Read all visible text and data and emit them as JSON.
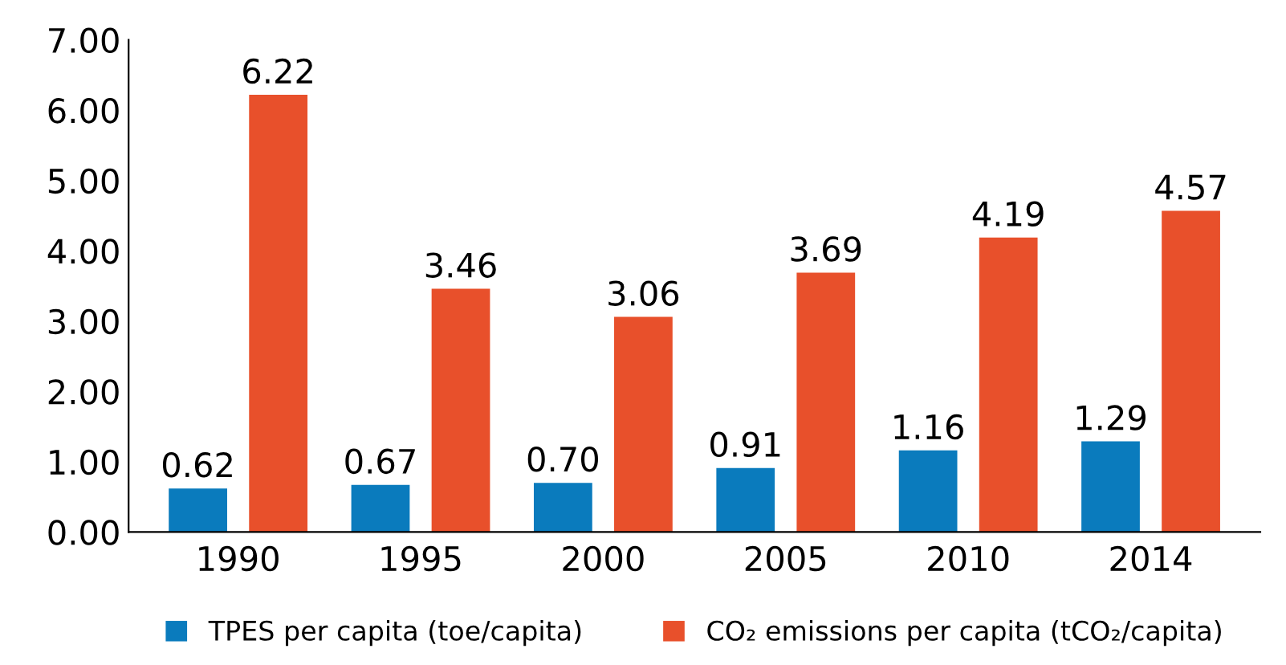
{
  "chart_data": {
    "type": "bar",
    "categories": [
      "1990",
      "1995",
      "2000",
      "2005",
      "2010",
      "2014"
    ],
    "series": [
      {
        "name": "TPES per capita (toe/capita)",
        "color": "#0a7bbd",
        "values": [
          0.62,
          0.67,
          0.7,
          0.91,
          1.16,
          1.29
        ],
        "value_labels": [
          "0.62",
          "0.67",
          "0.70",
          "0.91",
          "1.16",
          "1.29"
        ]
      },
      {
        "name": "CO₂ emissions per capita (tCO₂/capita)",
        "color": "#e8502b",
        "values": [
          6.22,
          3.46,
          3.06,
          3.69,
          4.19,
          4.57
        ],
        "value_labels": [
          "6.22",
          "3.46",
          "3.06",
          "3.69",
          "4.19",
          "4.57"
        ]
      }
    ],
    "ylim": [
      0,
      7
    ],
    "yticks": [
      {
        "value": 0,
        "label": "0.00"
      },
      {
        "value": 1,
        "label": "1.00"
      },
      {
        "value": 2,
        "label": "2.00"
      },
      {
        "value": 3,
        "label": "3.00"
      },
      {
        "value": 4,
        "label": "4.00"
      },
      {
        "value": 5,
        "label": "5.00"
      },
      {
        "value": 6,
        "label": "6.00"
      },
      {
        "value": 7,
        "label": "7.00"
      }
    ],
    "grid": false,
    "legend": "bottom"
  }
}
